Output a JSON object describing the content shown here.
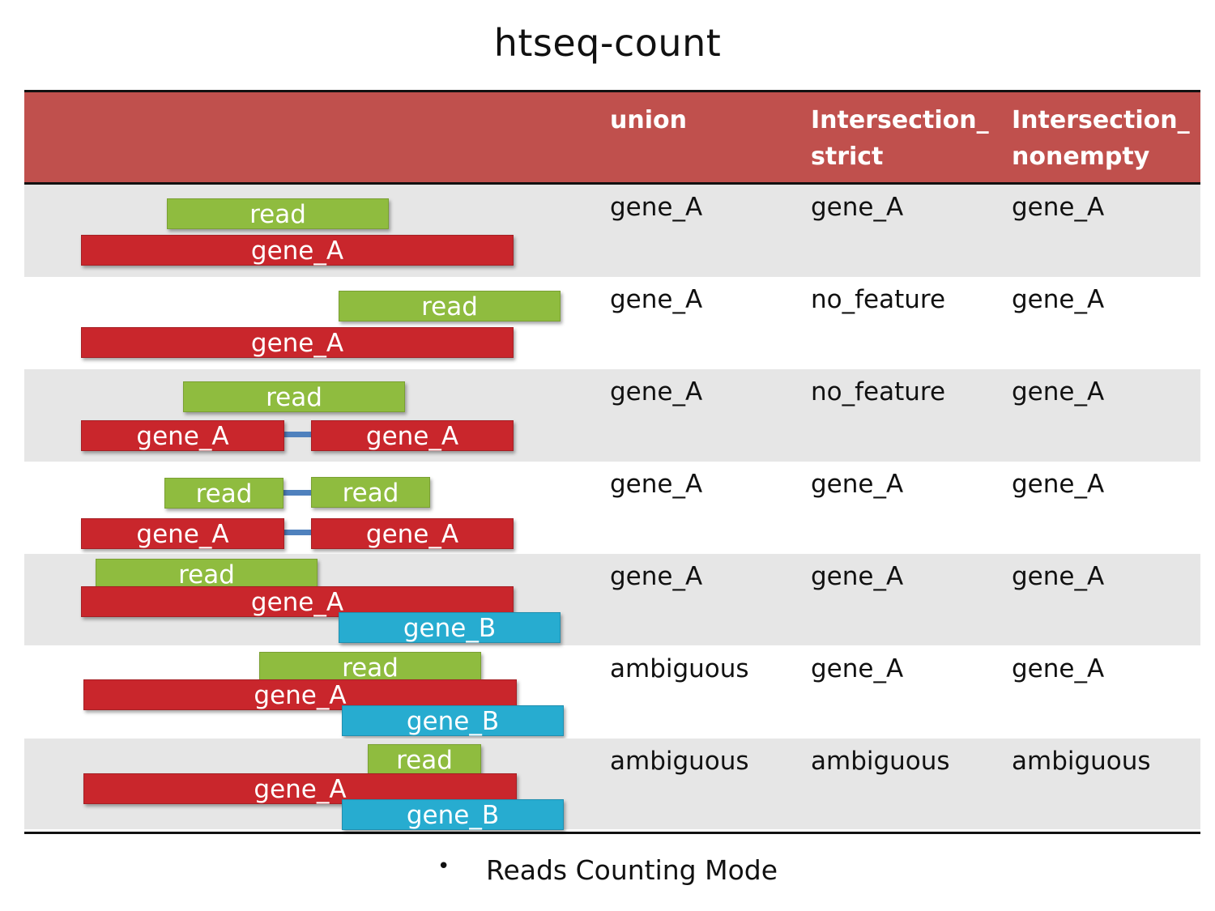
{
  "title": "htseq-count",
  "columns": [
    "union",
    "Intersection_\nstrict",
    "Intersection_\nnonempty"
  ],
  "column_lines": [
    [
      "union"
    ],
    [
      "Intersection_",
      "strict"
    ],
    [
      "Intersection_",
      "nonempty"
    ]
  ],
  "rows": [
    {
      "union": "gene_A",
      "strict": "gene_A",
      "nonempty": "gene_A",
      "bars": [
        {
          "type": "read",
          "label": "read"
        },
        {
          "type": "gene_A",
          "label": "gene_A"
        }
      ]
    },
    {
      "union": "gene_A",
      "strict": "no_feature",
      "nonempty": "gene_A",
      "bars": [
        {
          "type": "read",
          "label": "read"
        },
        {
          "type": "gene_A",
          "label": "gene_A"
        }
      ]
    },
    {
      "union": "gene_A",
      "strict": "no_feature",
      "nonempty": "gene_A",
      "bars": [
        {
          "type": "read",
          "label": "read"
        },
        {
          "type": "gene_A",
          "label": "gene_A"
        },
        {
          "type": "gene_A",
          "label": "gene_A"
        }
      ]
    },
    {
      "union": "gene_A",
      "strict": "gene_A",
      "nonempty": "gene_A",
      "bars": [
        {
          "type": "read",
          "label": "read"
        },
        {
          "type": "read",
          "label": "read"
        },
        {
          "type": "gene_A",
          "label": "gene_A"
        },
        {
          "type": "gene_A",
          "label": "gene_A"
        }
      ]
    },
    {
      "union": "gene_A",
      "strict": "gene_A",
      "nonempty": "gene_A",
      "bars": [
        {
          "type": "read",
          "label": "read"
        },
        {
          "type": "gene_A",
          "label": "gene_A"
        },
        {
          "type": "gene_B",
          "label": "gene_B"
        }
      ]
    },
    {
      "union": "ambiguous",
      "strict": "gene_A",
      "nonempty": "gene_A",
      "bars": [
        {
          "type": "read",
          "label": "read"
        },
        {
          "type": "gene_A",
          "label": "gene_A"
        },
        {
          "type": "gene_B",
          "label": "gene_B"
        }
      ]
    },
    {
      "union": "ambiguous",
      "strict": "ambiguous",
      "nonempty": "ambiguous",
      "bars": [
        {
          "type": "read",
          "label": "read"
        },
        {
          "type": "gene_A",
          "label": "gene_A"
        },
        {
          "type": "gene_B",
          "label": "gene_B"
        }
      ]
    }
  ],
  "footer": {
    "bullet": "•",
    "text": "Reads Counting Mode"
  },
  "colors": {
    "header": "#c0504d",
    "read": "#8fbc3f",
    "gene_A": "#c9262c",
    "gene_B": "#27acd0",
    "link": "#4f81bd",
    "shade": "#e6e6e6"
  }
}
